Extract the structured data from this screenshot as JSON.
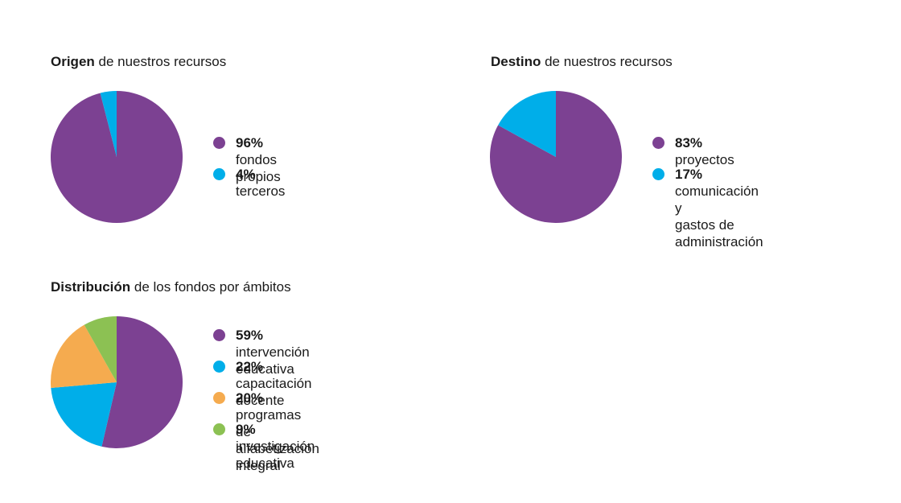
{
  "chart_data": [
    {
      "type": "pie",
      "title_bold": "Origen",
      "title_rest": " de nuestros recursos",
      "categories": [
        "fondos propios",
        "terceros"
      ],
      "values": [
        96,
        4
      ],
      "labels": [
        "96%",
        "4%"
      ],
      "colors": [
        "#7c4192",
        "#00aee9"
      ]
    },
    {
      "type": "pie",
      "title_bold": "Destino",
      "title_rest": " de nuestros recursos",
      "categories": [
        "proyectos",
        "comunicación y gastos de administración"
      ],
      "label_lines": [
        [
          "proyectos"
        ],
        [
          "comunicación y",
          "gastos de administración"
        ]
      ],
      "values": [
        83,
        17
      ],
      "labels": [
        "83%",
        "17%"
      ],
      "colors": [
        "#7c4192",
        "#00aee9"
      ]
    },
    {
      "type": "pie",
      "title_bold": "Distribución",
      "title_rest": " de los fondos por ámbitos",
      "categories": [
        "intervención educativa",
        "capacitación docente",
        "programas de alfabetización integral",
        "investigación educativa"
      ],
      "values": [
        59,
        22,
        20,
        9
      ],
      "labels": [
        "59%",
        "22%",
        "20%",
        "9%"
      ],
      "colors": [
        "#7c4192",
        "#00aee9",
        "#f5ab4f",
        "#8cc153"
      ]
    }
  ]
}
